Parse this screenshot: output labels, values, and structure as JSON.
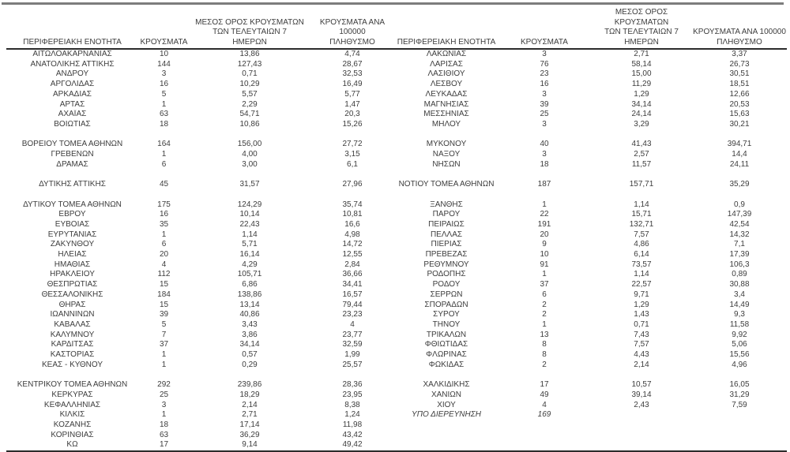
{
  "page": {
    "background": "#ffffff",
    "text_color": "#3d3d3d",
    "top_rule_color": "#7d7d7d",
    "rule_color": "#2b2b2b"
  },
  "table": {
    "headers": {
      "region": "ΠΕΡΙΦΕΡΕΙΑΚΗ ΕΝΟΤΗΤΑ",
      "cases": "ΚΡΟΥΣΜΑΤΑ",
      "avg7_lines": [
        "ΜΕΣΟΣ ΟΡΟΣ ΚΡΟΥΣΜΑΤΩΝ",
        "ΤΩΝ ΤΕΛΕΥΤΑΙΩΝ 7",
        "ΗΜΕΡΩΝ"
      ],
      "per100k_lines": [
        "ΚΡΟΥΣΜΑΤΑ ΑΝΑ 100000",
        "ΠΛΗΘΥΣΜΟ"
      ]
    },
    "rows": [
      {
        "l": [
          "ΑΙΤΩΛΟΑΚΑΡΝΑΝΙΑΣ",
          "10",
          "13,86",
          "4,74"
        ],
        "r": [
          "ΛΑΚΩΝΙΑΣ",
          "3",
          "2,71",
          "3,37"
        ]
      },
      {
        "l": [
          "ΑΝΑΤΟΛΙΚΗΣ ΑΤΤΙΚΗΣ",
          "144",
          "127,43",
          "28,67"
        ],
        "r": [
          "ΛΑΡΙΣΑΣ",
          "76",
          "58,14",
          "26,73"
        ]
      },
      {
        "l": [
          "ΑΝΔΡΟΥ",
          "3",
          "0,71",
          "32,53"
        ],
        "r": [
          "ΛΑΣΙΘΙΟΥ",
          "23",
          "15,00",
          "30,51"
        ]
      },
      {
        "l": [
          "ΑΡΓΟΛΙΔΑΣ",
          "16",
          "10,29",
          "16,49"
        ],
        "r": [
          "ΛΕΣΒΟΥ",
          "16",
          "11,29",
          "18,51"
        ]
      },
      {
        "l": [
          "ΑΡΚΑΔΙΑΣ",
          "5",
          "5,57",
          "5,77"
        ],
        "r": [
          "ΛΕΥΚΑΔΑΣ",
          "3",
          "1,29",
          "12,66"
        ]
      },
      {
        "l": [
          "ΑΡΤΑΣ",
          "1",
          "2,29",
          "1,47"
        ],
        "r": [
          "ΜΑΓΝΗΣΙΑΣ",
          "39",
          "34,14",
          "20,53"
        ]
      },
      {
        "l": [
          "ΑΧΑΪΑΣ",
          "63",
          "54,71",
          "20,3"
        ],
        "r": [
          "ΜΕΣΣΗΝΙΑΣ",
          "25",
          "24,14",
          "15,63"
        ]
      },
      {
        "l": [
          "ΒΟΙΩΤΙΑΣ",
          "18",
          "10,86",
          "15,26"
        ],
        "r": [
          "ΜΗΛΟΥ",
          "3",
          "3,29",
          "30,21"
        ]
      },
      {
        "spacer": true
      },
      {
        "l": [
          "ΒΟΡΕΙΟΥ ΤΟΜΕΑ ΑΘΗΝΩΝ",
          "164",
          "156,00",
          "27,72"
        ],
        "r": [
          "ΜΥΚΟΝΟΥ",
          "40",
          "41,43",
          "394,71"
        ]
      },
      {
        "l": [
          "ΓΡΕΒΕΝΩΝ",
          "1",
          "4,00",
          "3,15"
        ],
        "r": [
          "ΝΑΞΟΥ",
          "3",
          "2,57",
          "14,4"
        ]
      },
      {
        "l": [
          "ΔΡΑΜΑΣ",
          "6",
          "3,00",
          "6,1"
        ],
        "r": [
          "ΝΗΣΩΝ",
          "18",
          "11,57",
          "24,11"
        ]
      },
      {
        "spacer": true
      },
      {
        "l": [
          "ΔΥΤΙΚΗΣ ΑΤΤΙΚΗΣ",
          "45",
          "31,57",
          "27,96"
        ],
        "r": [
          "ΝΟΤΙΟΥ ΤΟΜΕΑ ΑΘΗΝΩΝ",
          "187",
          "157,71",
          "35,29"
        ]
      },
      {
        "spacer": true
      },
      {
        "l": [
          "ΔΥΤΙΚΟΥ ΤΟΜΕΑ ΑΘΗΝΩΝ",
          "175",
          "124,29",
          "35,74"
        ],
        "r": [
          "ΞΑΝΘΗΣ",
          "1",
          "1,14",
          "0,9"
        ]
      },
      {
        "l": [
          "ΕΒΡΟΥ",
          "16",
          "10,14",
          "10,81"
        ],
        "r": [
          "ΠΑΡΟΥ",
          "22",
          "15,71",
          "147,39"
        ]
      },
      {
        "l": [
          "ΕΥΒΟΙΑΣ",
          "35",
          "22,43",
          "16,6"
        ],
        "r": [
          "ΠΕΙΡΑΙΩΣ",
          "191",
          "132,71",
          "42,54"
        ]
      },
      {
        "l": [
          "ΕΥΡΥΤΑΝΙΑΣ",
          "1",
          "1,14",
          "4,98"
        ],
        "r": [
          "ΠΕΛΛΑΣ",
          "20",
          "7,57",
          "14,32"
        ]
      },
      {
        "l": [
          "ΖΑΚΥΝΘΟΥ",
          "6",
          "5,71",
          "14,72"
        ],
        "r": [
          "ΠΙΕΡΙΑΣ",
          "9",
          "4,86",
          "7,1"
        ]
      },
      {
        "l": [
          "ΗΛΕΙΑΣ",
          "20",
          "16,14",
          "12,55"
        ],
        "r": [
          "ΠΡΕΒΕΖΑΣ",
          "10",
          "6,14",
          "17,39"
        ]
      },
      {
        "l": [
          "ΗΜΑΘΙΑΣ",
          "4",
          "4,29",
          "2,84"
        ],
        "r": [
          "ΡΕΘΥΜΝΟΥ",
          "91",
          "73,57",
          "106,3"
        ]
      },
      {
        "l": [
          "ΗΡΑΚΛΕΙΟΥ",
          "112",
          "105,71",
          "36,66"
        ],
        "r": [
          "ΡΟΔΟΠΗΣ",
          "1",
          "1,14",
          "0,89"
        ]
      },
      {
        "l": [
          "ΘΕΣΠΡΩΤΙΑΣ",
          "15",
          "6,86",
          "34,41"
        ],
        "r": [
          "ΡΟΔΟΥ",
          "37",
          "22,57",
          "30,88"
        ]
      },
      {
        "l": [
          "ΘΕΣΣΑΛΟΝΙΚΗΣ",
          "184",
          "138,86",
          "16,57"
        ],
        "r": [
          "ΣΕΡΡΩΝ",
          "6",
          "9,71",
          "3,4"
        ]
      },
      {
        "l": [
          "ΘΗΡΑΣ",
          "15",
          "13,14",
          "79,44"
        ],
        "r": [
          "ΣΠΟΡΑΔΩΝ",
          "2",
          "1,29",
          "14,49"
        ]
      },
      {
        "l": [
          "ΙΩΑΝΝΙΝΩΝ",
          "39",
          "40,86",
          "23,23"
        ],
        "r": [
          "ΣΥΡΟΥ",
          "2",
          "1,43",
          "9,3"
        ]
      },
      {
        "l": [
          "ΚΑΒΑΛΑΣ",
          "5",
          "3,43",
          "4"
        ],
        "r": [
          "ΤΗΝΟΥ",
          "1",
          "0,71",
          "11,58"
        ]
      },
      {
        "l": [
          "ΚΑΛΥΜΝΟΥ",
          "7",
          "3,86",
          "23,77"
        ],
        "r": [
          "ΤΡΙΚΑΛΩΝ",
          "13",
          "7,43",
          "9,92"
        ]
      },
      {
        "l": [
          "ΚΑΡΔΙΤΣΑΣ",
          "37",
          "34,14",
          "32,59"
        ],
        "r": [
          "ΦΘΙΩΤΙΔΑΣ",
          "8",
          "7,57",
          "5,06"
        ]
      },
      {
        "l": [
          "ΚΑΣΤΟΡΙΑΣ",
          "1",
          "0,57",
          "1,99"
        ],
        "r": [
          "ΦΛΩΡΙΝΑΣ",
          "8",
          "4,43",
          "15,56"
        ]
      },
      {
        "l": [
          "ΚΕΑΣ - ΚΥΘΝΟΥ",
          "1",
          "0,29",
          "25,57"
        ],
        "r": [
          "ΦΩΚΙΔΑΣ",
          "2",
          "2,14",
          "4,96"
        ]
      },
      {
        "spacer": true
      },
      {
        "l": [
          "ΚΕΝΤΡΙΚΟΥ ΤΟΜΕΑ ΑΘΗΝΩΝ",
          "292",
          "239,86",
          "28,36"
        ],
        "r": [
          "ΧΑΛΚΙΔΙΚΗΣ",
          "17",
          "10,57",
          "16,05"
        ]
      },
      {
        "l": [
          "ΚΕΡΚΥΡΑΣ",
          "25",
          "18,29",
          "23,95"
        ],
        "r": [
          "ΧΑΝΙΩΝ",
          "49",
          "39,14",
          "31,29"
        ]
      },
      {
        "l": [
          "ΚΕΦΑΛΛΗΝΙΑΣ",
          "3",
          "2,14",
          "8,38"
        ],
        "r": [
          "ΧΙΟΥ",
          "4",
          "2,43",
          "7,59"
        ]
      },
      {
        "l": [
          "ΚΙΛΚΙΣ",
          "1",
          "2,71",
          "1,24"
        ],
        "r": [
          "ΥΠΟ ΔΙΕΡΕΥΝΗΣΗ",
          "169",
          "",
          ""
        ],
        "r_italic": true
      },
      {
        "l": [
          "ΚΟΖΑΝΗΣ",
          "18",
          "17,14",
          "11,98"
        ],
        "r": null
      },
      {
        "l": [
          "ΚΟΡΙΝΘΙΑΣ",
          "63",
          "36,29",
          "43,42"
        ],
        "r": null
      },
      {
        "l": [
          "ΚΩ",
          "17",
          "9,14",
          "49,42"
        ],
        "r": null
      }
    ]
  }
}
